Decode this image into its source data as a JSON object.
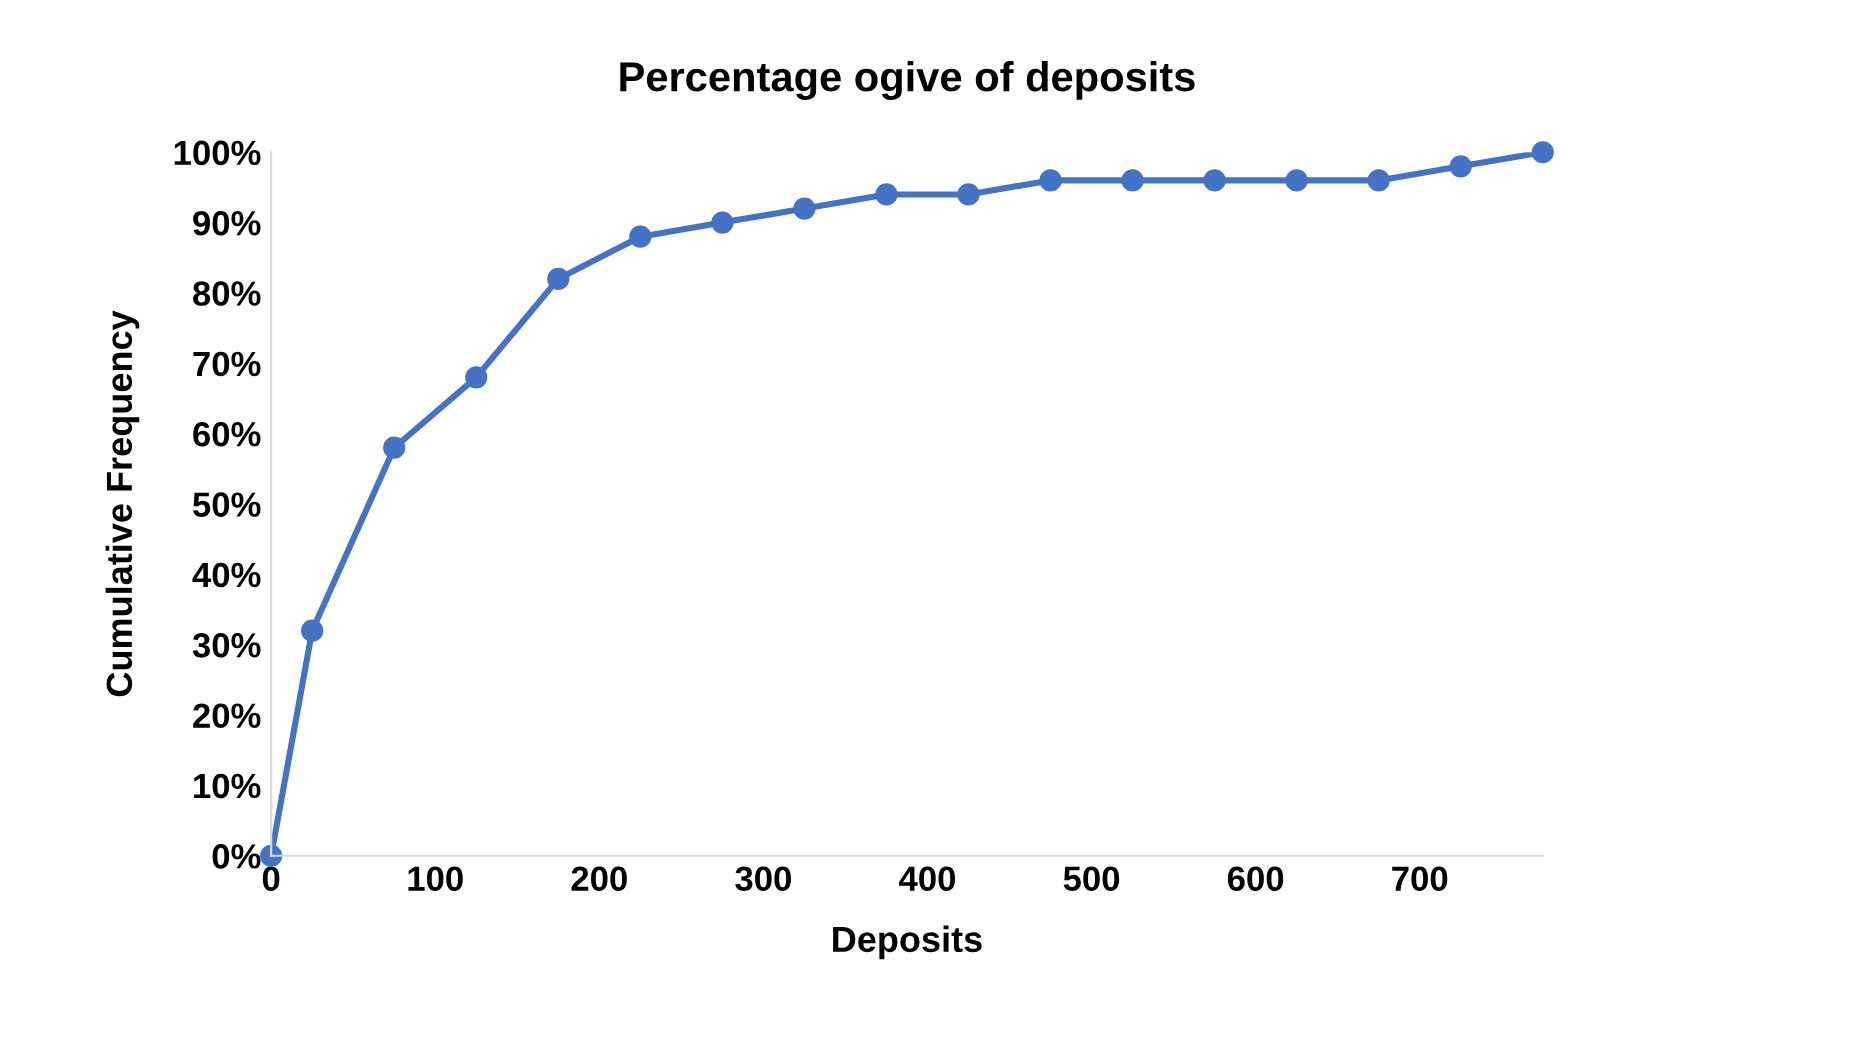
{
  "chart_data": {
    "type": "line",
    "title": "Percentage ogive of deposits",
    "xlabel": "Deposits",
    "ylabel": "Cumulative Frequency",
    "x": [
      0,
      25,
      75,
      125,
      175,
      225,
      275,
      325,
      375,
      425,
      475,
      525,
      575,
      625,
      675,
      725,
      775
    ],
    "series": [
      {
        "color": "#4472c4",
        "values": [
          0,
          32,
          58,
          68,
          82,
          88,
          90,
          92,
          94,
          94,
          96,
          96,
          96,
          96,
          96,
          98,
          100
        ]
      }
    ],
    "xlim": [
      0,
      775
    ],
    "xticks": [
      0,
      100,
      200,
      300,
      400,
      500,
      600,
      700
    ],
    "ylim": [
      0,
      100
    ],
    "yticks": [
      {
        "value": 0,
        "label": "0%"
      },
      {
        "value": 10,
        "label": "10%"
      },
      {
        "value": 20,
        "label": "20%"
      },
      {
        "value": 30,
        "label": "30%"
      },
      {
        "value": 40,
        "label": "40%"
      },
      {
        "value": 50,
        "label": "50%"
      },
      {
        "value": 60,
        "label": "60%"
      },
      {
        "value": 70,
        "label": "70%"
      },
      {
        "value": 80,
        "label": "80%"
      },
      {
        "value": 90,
        "label": "90%"
      },
      {
        "value": 100,
        "label": "100%"
      }
    ],
    "grid": false,
    "legend": false,
    "marker": "circle",
    "line_style": "solid"
  }
}
